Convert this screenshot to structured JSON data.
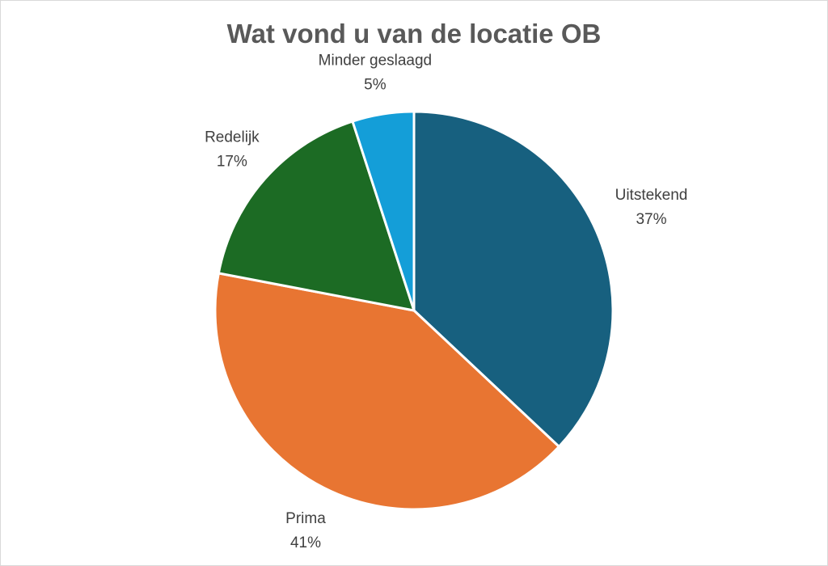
{
  "chart_data": {
    "type": "pie",
    "title": "Wat vond u van de locatie OB",
    "slices": [
      {
        "label": "Uitstekend",
        "value": 37,
        "value_label": "37%",
        "color": "#17607f"
      },
      {
        "label": "Prima",
        "value": 41,
        "value_label": "41%",
        "color": "#e87532"
      },
      {
        "label": "Redelijk",
        "value": 17,
        "value_label": "17%",
        "color": "#1c6b24"
      },
      {
        "label": "Minder geslaagd",
        "value": 5,
        "value_label": "5%",
        "color": "#149ed8"
      }
    ],
    "start_position": "top",
    "direction": "clockwise",
    "legend": "none"
  }
}
